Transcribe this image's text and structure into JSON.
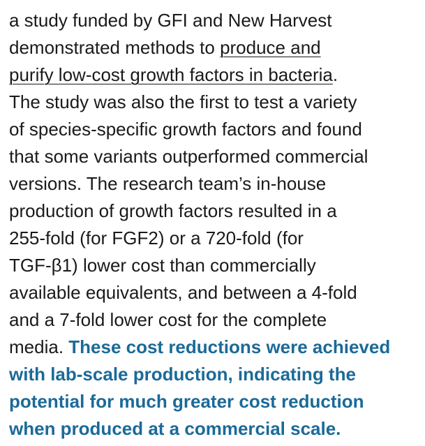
{
  "lines": [
    [
      {
        "text": "a study funded by GFI and New Harvest",
        "kind": "plain"
      }
    ],
    [
      {
        "text": "demonstrated methods to ",
        "kind": "plain"
      },
      {
        "text": "produce and",
        "kind": "link"
      }
    ],
    [
      {
        "text": "purify low-cost growth factors in bacteria",
        "kind": "link"
      },
      {
        "text": ".",
        "kind": "plain"
      }
    ],
    [
      {
        "text": "The study was also the first to test a variety",
        "kind": "plain"
      }
    ],
    [
      {
        "text": "of species-specific growth factors and found",
        "kind": "plain"
      }
    ],
    [
      {
        "text": "that some variants outperformed commercial",
        "kind": "plain"
      }
    ],
    [
      {
        "text": "versions. The research team’s in-house",
        "kind": "plain"
      }
    ],
    [
      {
        "text": "production of growth factors resulted in a",
        "kind": "plain"
      }
    ],
    [
      {
        "text": "255-fold (for FGF2) or a 720-fold (for",
        "kind": "plain"
      }
    ],
    [
      {
        "text": "TGF-β1) lower cost than commercially",
        "kind": "plain"
      }
    ],
    [
      {
        "text": "available equivalents, and between a 4-fold",
        "kind": "plain"
      }
    ],
    [
      {
        "text": "and a 7-fold lower cost for the complete",
        "kind": "plain"
      }
    ],
    [
      {
        "text": "media. ",
        "kind": "plain"
      },
      {
        "text": "These cost reductions were achieved",
        "kind": "emphasis"
      }
    ],
    [
      {
        "text": "with lab-scale production, indicating the",
        "kind": "emphasis"
      }
    ],
    [
      {
        "text": "potential for much greater cost reduction",
        "kind": "emphasis"
      }
    ],
    [
      {
        "text": "when produced at a commercial scale.",
        "kind": "emphasis"
      }
    ]
  ]
}
